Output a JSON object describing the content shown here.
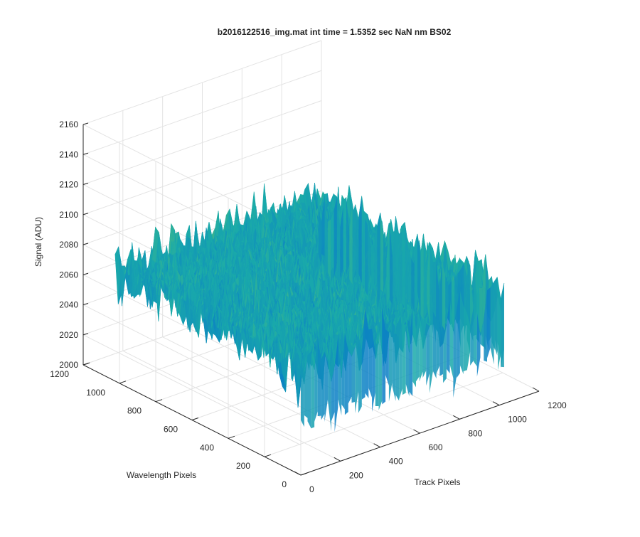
{
  "chart_data": {
    "type": "surface",
    "title": "b2016122516_img.mat int time = 1.5352 sec  NaN nm BS02",
    "xlabel": "Track Pixels",
    "ylabel": "Wavelength Pixels",
    "zlabel": "Signal (ADU)",
    "xlim": [
      0,
      1200
    ],
    "ylim": [
      0,
      1200
    ],
    "zlim": [
      2000,
      2160
    ],
    "x_ticks": [
      "0",
      "200",
      "400",
      "600",
      "800",
      "1000",
      "1200"
    ],
    "y_ticks": [
      "0",
      "200",
      "400",
      "600",
      "800",
      "1000",
      "1200"
    ],
    "z_ticks": [
      "2000",
      "2020",
      "2040",
      "2060",
      "2080",
      "2100",
      "2120",
      "2140",
      "2160"
    ],
    "grid": true,
    "colormap": "parula",
    "surface": {
      "x_range": [
        0,
        1024
      ],
      "y_range": [
        0,
        1024
      ],
      "z_mean": 2073,
      "z_std": 18,
      "z_min_approx": 2010,
      "z_max_approx": 2145
    }
  },
  "colors": {
    "axis": "#262626",
    "grid": "#e3e3e3",
    "parula_low": "#0072bd",
    "parula_mid": "#1fb0a8",
    "parula_high": "#d9c53a"
  }
}
